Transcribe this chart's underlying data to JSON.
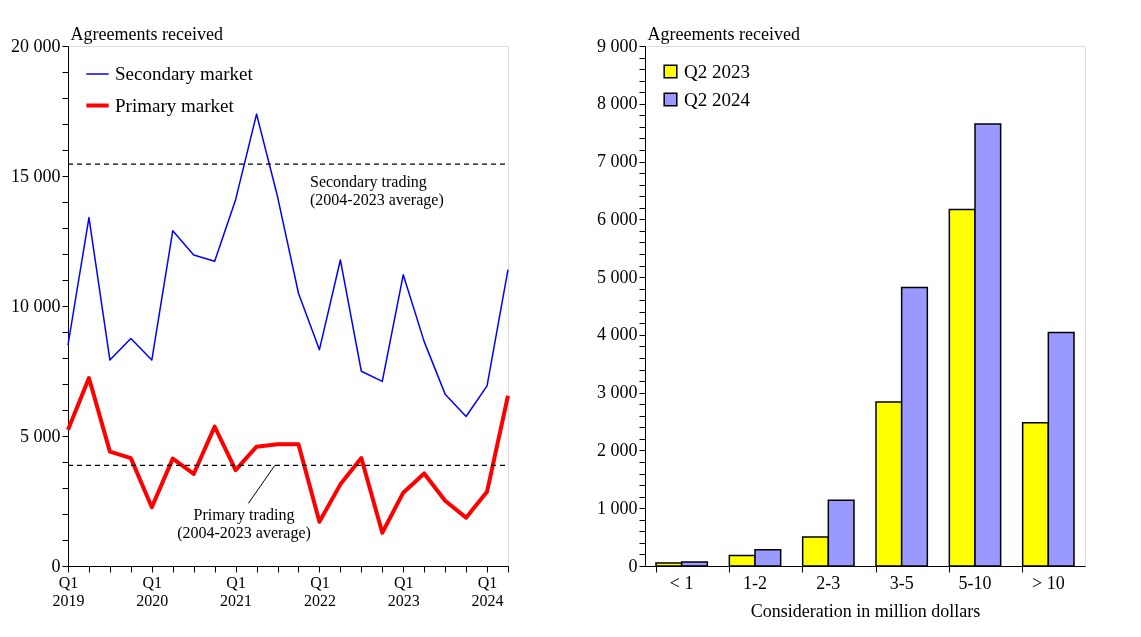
{
  "chart_data": [
    {
      "type": "line",
      "ylabel": "Agreements received",
      "legend": "top left",
      "grid": false,
      "categories": [
        "Q1 2019",
        null,
        null,
        null,
        "Q1 2020",
        null,
        null,
        null,
        "Q1 2021",
        null,
        null,
        null,
        "Q1 2022",
        null,
        null,
        null,
        "Q1 2023",
        null,
        null,
        null,
        "Q1 2024",
        null
      ],
      "series": [
        {
          "name": "Secondary market",
          "color": "#0000ff",
          "values": [
            8500,
            13400,
            7920,
            8750,
            7920,
            12890,
            11960,
            11720,
            14090,
            17380,
            14210,
            10490,
            8320,
            11770,
            7490,
            7100,
            11200,
            8630,
            6610,
            5750,
            6930,
            11400
          ]
        },
        {
          "name": "Primary market",
          "color": "#ff0000",
          "values": [
            5240,
            7230,
            4400,
            4150,
            2260,
            4130,
            3540,
            5360,
            3690,
            4590,
            4680,
            4680,
            1700,
            3140,
            4150,
            1280,
            2820,
            3560,
            2510,
            1860,
            2860,
            6550
          ]
        }
      ],
      "ylim": [
        0,
        20000
      ],
      "yticks": [
        {
          "value": 0,
          "label": "0"
        },
        {
          "value": 1000,
          "label": null
        },
        {
          "value": 2000,
          "label": null
        },
        {
          "value": 3000,
          "label": null
        },
        {
          "value": 4000,
          "label": null
        },
        {
          "value": 5000,
          "label": "5 000"
        },
        {
          "value": 6000,
          "label": null
        },
        {
          "value": 7000,
          "label": null
        },
        {
          "value": 8000,
          "label": null
        },
        {
          "value": 9000,
          "label": null
        },
        {
          "value": 10000,
          "label": "10 000"
        },
        {
          "value": 11000,
          "label": null
        },
        {
          "value": 12000,
          "label": null
        },
        {
          "value": 13000,
          "label": null
        },
        {
          "value": 14000,
          "label": null
        },
        {
          "value": 15000,
          "label": "15 000"
        },
        {
          "value": 16000,
          "label": null
        },
        {
          "value": 17000,
          "label": null
        },
        {
          "value": 18000,
          "label": null
        },
        {
          "value": 19000,
          "label": null
        },
        {
          "value": 20000,
          "label": "20 000"
        }
      ],
      "ref_lines": [
        {
          "axis": "y",
          "value": 15460,
          "label": "Secondary trading\n(2004-2023 average)",
          "color": "#000000",
          "line_style": "dashed"
        },
        {
          "axis": "y",
          "value": 3870,
          "label": "Primary trading\n(2004-2023 average)",
          "color": "#000000",
          "line_style": "dashed"
        }
      ]
    },
    {
      "type": "bar",
      "ylabel": "Agreements received",
      "xlabel": "Consideration in million dollars",
      "legend": "top left",
      "grid": false,
      "categories": [
        "< 1",
        "1-2",
        "2-3",
        "3-5",
        "5-10",
        "> 10"
      ],
      "series": [
        {
          "name": "Q2 2023",
          "color": "#ffff00",
          "values": [
            50,
            180,
            500,
            2840,
            6170,
            2480
          ]
        },
        {
          "name": "Q2 2024",
          "color": "#9999ff",
          "values": [
            70,
            280,
            1140,
            4820,
            7650,
            4040
          ]
        }
      ],
      "ylim": [
        0,
        9000
      ],
      "yticks": [
        {
          "value": 0,
          "label": "0"
        },
        {
          "value": 200,
          "label": null
        },
        {
          "value": 400,
          "label": null
        },
        {
          "value": 600,
          "label": null
        },
        {
          "value": 800,
          "label": null
        },
        {
          "value": 1000,
          "label": "1 000"
        },
        {
          "value": 1200,
          "label": null
        },
        {
          "value": 1400,
          "label": null
        },
        {
          "value": 1600,
          "label": null
        },
        {
          "value": 1800,
          "label": null
        },
        {
          "value": 2000,
          "label": "2 000"
        },
        {
          "value": 2200,
          "label": null
        },
        {
          "value": 2400,
          "label": null
        },
        {
          "value": 2600,
          "label": null
        },
        {
          "value": 2800,
          "label": null
        },
        {
          "value": 3000,
          "label": "3 000"
        },
        {
          "value": 3200,
          "label": null
        },
        {
          "value": 3400,
          "label": null
        },
        {
          "value": 3600,
          "label": null
        },
        {
          "value": 3800,
          "label": null
        },
        {
          "value": 4000,
          "label": "4 000"
        },
        {
          "value": 4200,
          "label": null
        },
        {
          "value": 4400,
          "label": null
        },
        {
          "value": 4600,
          "label": null
        },
        {
          "value": 4800,
          "label": null
        },
        {
          "value": 5000,
          "label": "5 000"
        },
        {
          "value": 5200,
          "label": null
        },
        {
          "value": 5400,
          "label": null
        },
        {
          "value": 5600,
          "label": null
        },
        {
          "value": 5800,
          "label": null
        },
        {
          "value": 6000,
          "label": "6 000"
        },
        {
          "value": 6200,
          "label": null
        },
        {
          "value": 6400,
          "label": null
        },
        {
          "value": 6600,
          "label": null
        },
        {
          "value": 6800,
          "label": null
        },
        {
          "value": 7000,
          "label": "7 000"
        },
        {
          "value": 7200,
          "label": null
        },
        {
          "value": 7400,
          "label": null
        },
        {
          "value": 7600,
          "label": null
        },
        {
          "value": 7800,
          "label": null
        },
        {
          "value": 8000,
          "label": "8 000"
        },
        {
          "value": 8200,
          "label": null
        },
        {
          "value": 8400,
          "label": null
        },
        {
          "value": 8600,
          "label": null
        },
        {
          "value": 8800,
          "label": null
        },
        {
          "value": 9000,
          "label": "9 000"
        }
      ]
    }
  ]
}
